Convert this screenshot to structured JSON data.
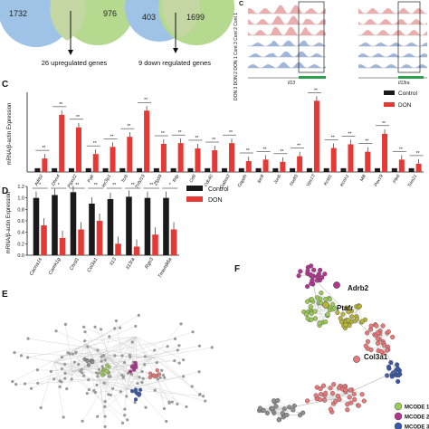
{
  "colors": {
    "venn_blue": "#9ec3e6",
    "venn_green": "#b5d98f",
    "venn_overlap": "#c4d7a3",
    "control": "#1a1a1a",
    "don": "#e53935",
    "track_red": "#e8a0a0",
    "track_blue": "#8fa9d4",
    "highlight_green": "#2e9e4f",
    "mcode1": "#e8787a",
    "mcode2": "#9cc95a",
    "mcode3": "#b2358f",
    "mcode4": "#b7b43a",
    "mcode5": "#3b57a8",
    "mcode6": "#8e8e8e"
  },
  "panel_a": {
    "venn1_left": "1732",
    "venn1_right": "976",
    "venn1_caption": "26 upregulated genes",
    "venn2_left": "403",
    "venn2_right": "1699",
    "venn2_caption": "9 down regulated genes"
  },
  "panel_b": {
    "side_label": "DON 3 DON 2 DON 1 Cont 3 Cont 2 Cont 1",
    "gene_labels": [
      "Il13",
      "Il13ra"
    ]
  },
  "panel_labels": {
    "c": "C",
    "d": "D",
    "e": "E",
    "f": "F"
  },
  "panel_c": {
    "ylabel": "mRNA/β-actin Expression",
    "legend": [
      "Control",
      "DON"
    ],
    "genes": [
      "Adrb2",
      "Dhrs4",
      "Ptpn22",
      "Pafr",
      "Ier3ip1",
      "Tcrb",
      "Tnfsf15",
      "Zfp59",
      "Rilp",
      "Cd6",
      "Cdc40",
      "Gabra3",
      "Gapdh",
      "Ipo9",
      "Junb",
      "Nudt5",
      "Vps13",
      "Kctd1",
      "Kcnh1",
      "Mllt",
      "Pex19",
      "Ptk6",
      "Trim21"
    ],
    "control": [
      1,
      1,
      1,
      1,
      1,
      1,
      1,
      1,
      1,
      1,
      1,
      1,
      1,
      1,
      1,
      1,
      1,
      1,
      1,
      1,
      1,
      1,
      1
    ],
    "don": [
      3.6,
      15.7,
      11.9,
      4.8,
      6.7,
      9.4,
      18.6,
      7.5,
      7.7,
      6.3,
      5.8,
      7.7,
      2.9,
      3.3,
      2.7,
      4.2,
      25.4,
      6.4,
      7.4,
      5.4,
      10.2,
      3.3,
      2.2
    ],
    "sig": [
      "**",
      "**",
      "**",
      "**",
      "**",
      "**",
      "**",
      "**",
      "**",
      "**",
      "**",
      "**",
      "**",
      "**",
      "**",
      "**",
      "**",
      "**",
      "**",
      "**",
      "**",
      "**",
      "**"
    ]
  },
  "panel_d": {
    "ylabel": "mRNA/β-actin Expression",
    "legend": [
      "Control",
      "DON"
    ],
    "genes": [
      "Cacna1s",
      "Camk1g",
      "Chrd1",
      "Col3a1",
      "Il13",
      "Il13ra",
      "Rgs3",
      "Tmem86a"
    ],
    "ticks": [
      "0.0",
      "0.2",
      "0.4",
      "0.6",
      "0.8",
      "1.0",
      "1.2"
    ],
    "ylim": [
      0,
      1.2
    ],
    "control": [
      1.0,
      1.05,
      1.1,
      0.9,
      0.98,
      1.02,
      1.0,
      1.0
    ],
    "don": [
      0.52,
      0.3,
      0.45,
      0.6,
      0.2,
      0.15,
      0.36,
      0.45
    ],
    "sig": [
      "*",
      "*",
      "**",
      "**",
      "**",
      "**",
      "**",
      "*"
    ]
  },
  "panel_f": {
    "labels": [
      "Adrb2",
      "Ptafr",
      "Col3a1"
    ],
    "legend": [
      "MCODE 1",
      "MCODE 2",
      "MCODE 3"
    ]
  }
}
